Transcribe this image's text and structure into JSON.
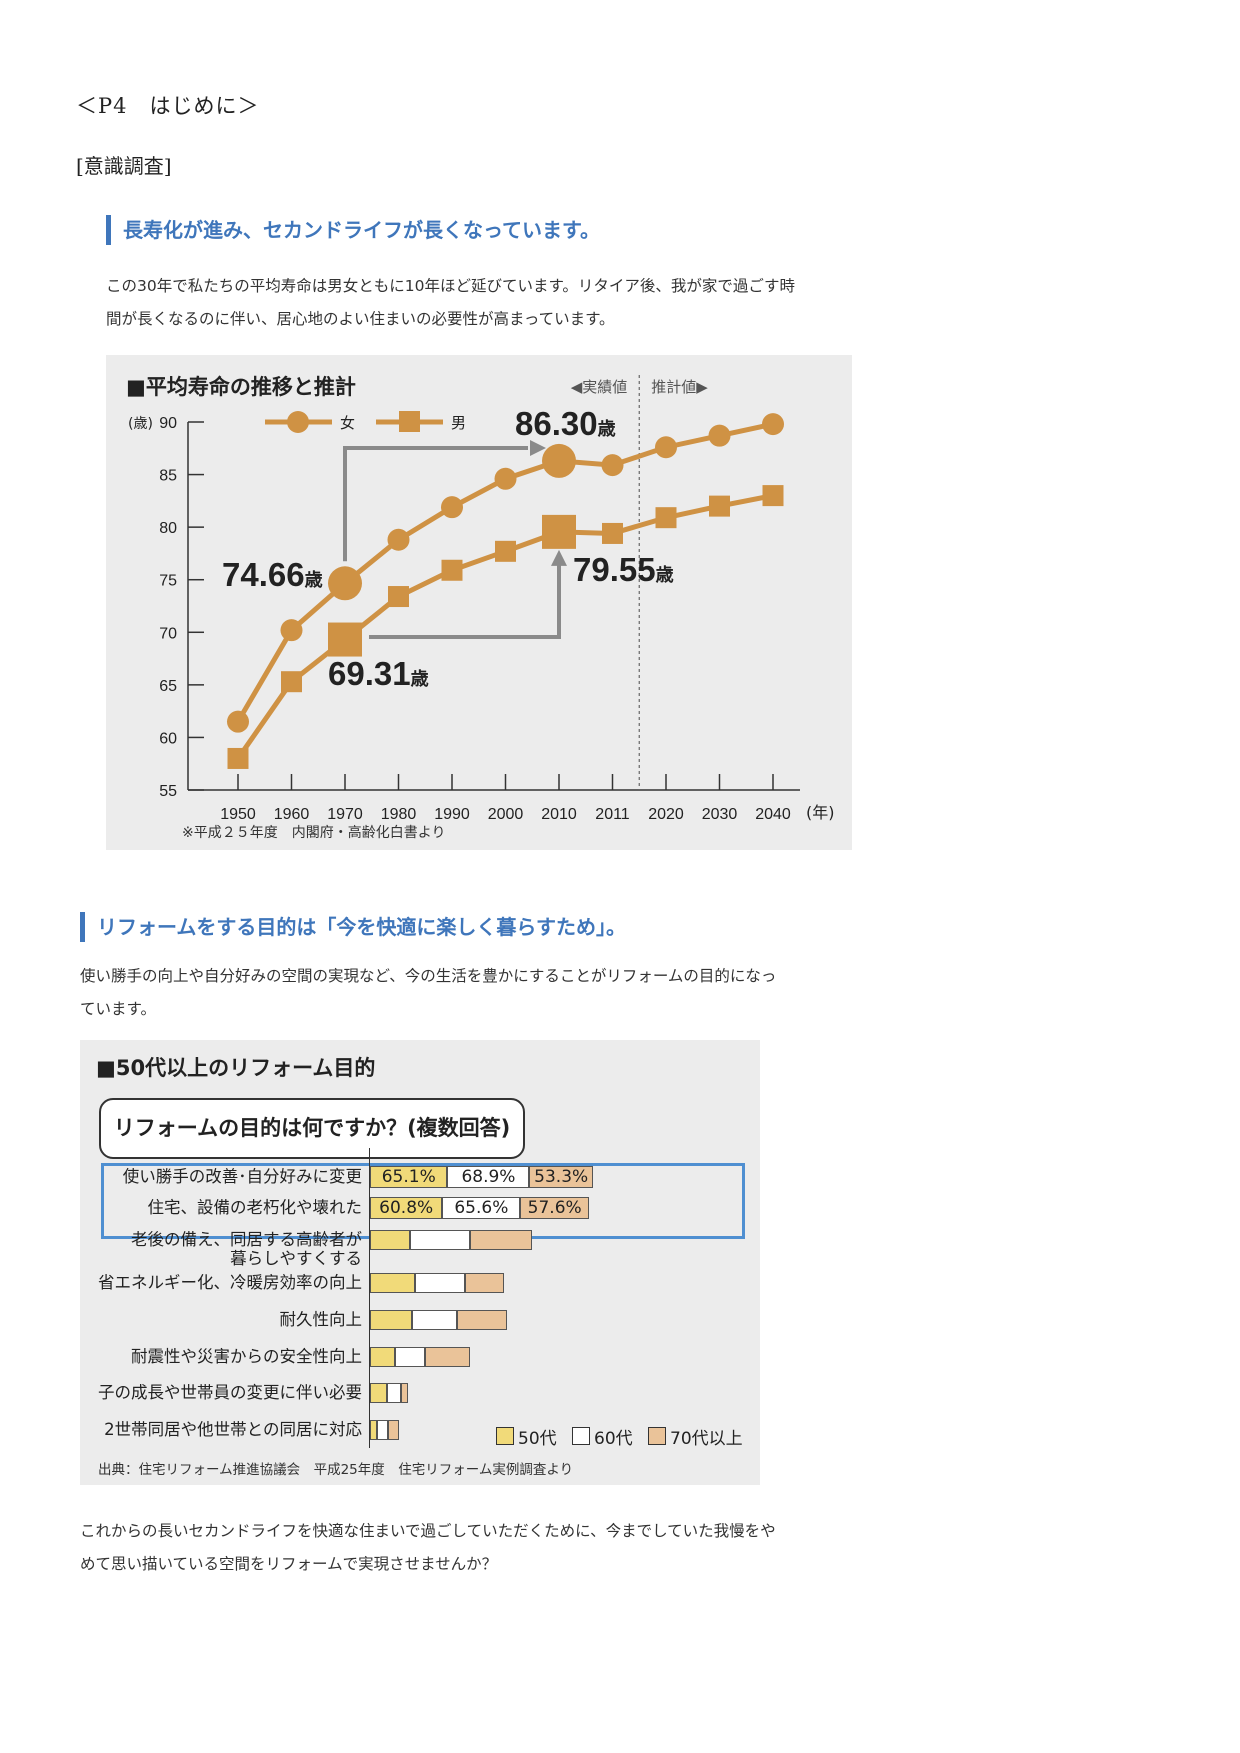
{
  "header": {
    "page_title": "＜P4　はじめに＞",
    "subtitle": "[意識調査]"
  },
  "section1": {
    "heading": "長寿化が進み、セカンドライフが長くなっています。",
    "para_line1": "この30年で私たちの平均寿命は男女ともに10年ほど延びています。リタイア後、我が家で過ごす時",
    "para_line2": "間が長くなるのに伴い、居心地のよい住まいの必要性が高まっています。"
  },
  "chart1": {
    "title": "■平均寿命の推移と推計",
    "actual_label": "◀実績値",
    "forecast_label": "推計値▶",
    "y_unit": "(歳)",
    "x_unit": "(年)",
    "legend_female": "女",
    "legend_male": "男",
    "source": "※平成２５年度　内閣府・高齢化白書より",
    "callouts": {
      "female_1970": "74.66",
      "female_2010": "86.30",
      "male_1970": "69.31",
      "male_2010": "79.55",
      "unit": "歳"
    }
  },
  "chart_data": [
    {
      "type": "line",
      "title": "■平均寿命の推移と推計",
      "x": [
        "1950",
        "1960",
        "1970",
        "1980",
        "1990",
        "2000",
        "2010",
        "2011",
        "2020",
        "2030",
        "2040"
      ],
      "ylim": [
        55,
        90
      ],
      "yticks": [
        "55",
        "60",
        "65",
        "70",
        "75",
        "80",
        "85",
        "90"
      ],
      "series": [
        {
          "name": "女",
          "values": [
            61.5,
            70.2,
            74.66,
            78.8,
            81.9,
            84.6,
            86.3,
            85.9,
            87.6,
            88.7,
            89.8
          ]
        },
        {
          "name": "男",
          "values": [
            58.0,
            65.3,
            69.31,
            73.4,
            75.9,
            77.7,
            79.55,
            79.4,
            80.9,
            82.0,
            83.0
          ]
        }
      ]
    },
    {
      "type": "bar",
      "title": "■50代以上のリフォーム目的",
      "categories": [
        "使い勝手の改善･自分好みに変更",
        "住宅、設備の老朽化や壊れた",
        "老後の備え、同居する高齢者が暮らしやすくする",
        "省エネルギー化、冷暖房効率の向上",
        "耐久性向上",
        "耐震性や災害からの安全性向上",
        "子の成長や世帯員の変更に伴い必要",
        "2世帯同居や他世帯との同居に対応"
      ],
      "series": [
        {
          "name": "50代",
          "values": [
            65.1,
            60.8,
            34.0,
            38.0,
            35.0,
            21.0,
            14.0,
            6.0
          ]
        },
        {
          "name": "60代",
          "values": [
            68.9,
            65.6,
            50.0,
            42.0,
            38.0,
            25.0,
            12.0,
            9.0
          ]
        },
        {
          "name": "70代以上",
          "values": [
            53.3,
            57.6,
            52.0,
            33.0,
            42.0,
            38.0,
            6.0,
            9.0
          ]
        }
      ]
    }
  ],
  "section2": {
    "heading": "リフォームをする目的は「今を快適に楽しく暮らすため」。",
    "para_line1": "使い勝手の向上や自分好みの空間の実現など、今の生活を豊かにすることがリフォームの目的になっ",
    "para_line2": "ています。"
  },
  "chart2": {
    "title": "■50代以上のリフォーム目的",
    "question": "リフォームの目的は何ですか？(複数回答)",
    "labels": {
      "l0": "使い勝手の改善･自分好みに変更",
      "l1": "住宅、設備の老朽化や壊れた",
      "l2a": "老後の備え、同居する高齢者が",
      "l2b": "暮らしやすくする",
      "l3": "省エネルギー化、冷暖房効率の向上",
      "l4": "耐久性向上",
      "l5": "耐震性や災害からの安全性向上",
      "l6": "子の成長や世帯員の変更に伴い必要",
      "l7": "2世帯同居や他世帯との同居に対応"
    },
    "value_labels": {
      "r0a": "65.1%",
      "r0b": "68.9%",
      "r0c": "53.3%",
      "r1a": "60.8%",
      "r1b": "65.6%",
      "r1c": "57.6%"
    },
    "legend": {
      "a": "50代",
      "b": "60代",
      "c": "70代以上"
    },
    "colors": {
      "a": "#f1da79",
      "b": "#ffffff",
      "c": "#eac399"
    },
    "source": "出典：住宅リフォーム推進協議会　平成25年度　住宅リフォーム実例調査より"
  },
  "closing": {
    "line1": "これからの長いセカンドライフを快適な住まいで過ごしていただくために、今までしていた我慢をや",
    "line2": "めて思い描いている空間をリフォームで実現させませんか？"
  }
}
